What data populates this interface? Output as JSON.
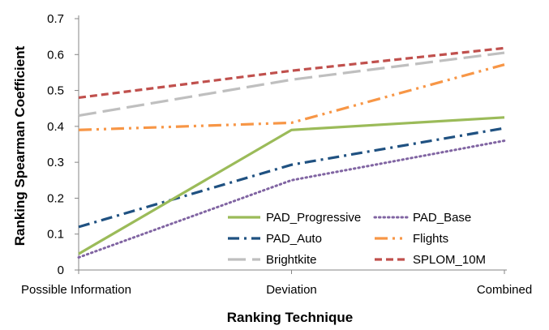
{
  "chart_data": {
    "type": "line",
    "title": "",
    "xlabel": "Ranking Technique",
    "ylabel": "Ranking Spearman Coefficient",
    "categories": [
      "Possible Information",
      "Deviation",
      "Combined"
    ],
    "ylim": [
      0,
      0.7
    ],
    "yticks": [
      "0",
      "0.1",
      "0.2",
      "0.3",
      "0.4",
      "0.5",
      "0.6",
      "0.7"
    ],
    "grid": false,
    "legend_position": "bottom-right",
    "series": [
      {
        "name": "PAD_Progressive",
        "values": [
          0.045,
          0.39,
          0.425
        ],
        "color": "#9BBB59",
        "dash": "solid"
      },
      {
        "name": "PAD_Base",
        "values": [
          0.035,
          0.25,
          0.36
        ],
        "color": "#8064A2",
        "dash": "dot"
      },
      {
        "name": "PAD_Auto",
        "values": [
          0.12,
          0.293,
          0.395
        ],
        "color": "#1F5181",
        "dash": "dashdot"
      },
      {
        "name": "Flights",
        "values": [
          0.39,
          0.41,
          0.572
        ],
        "color": "#F79646",
        "dash": "dashdotdot"
      },
      {
        "name": "Brightkite",
        "values": [
          0.43,
          0.53,
          0.605
        ],
        "color": "#BFBFBF",
        "dash": "longdash"
      },
      {
        "name": "SPLOM_10M",
        "values": [
          0.48,
          0.555,
          0.618
        ],
        "color": "#C0504D",
        "dash": "dash"
      }
    ]
  }
}
